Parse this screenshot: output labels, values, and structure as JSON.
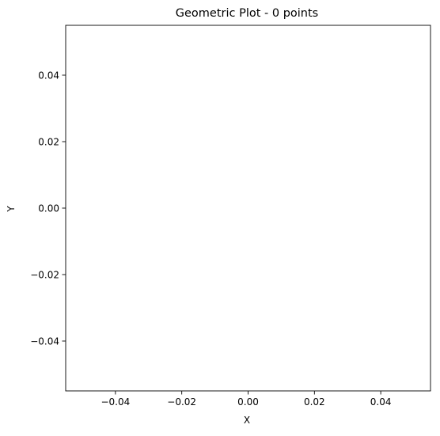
{
  "chart_data": {
    "type": "scatter",
    "title": "Geometric Plot - 0 points",
    "xlabel": "X",
    "ylabel": "Y",
    "x": [],
    "y": [],
    "xlim": [
      -0.055,
      0.055
    ],
    "ylim": [
      -0.055,
      0.055
    ],
    "xticks": [
      -0.04,
      -0.02,
      0.0,
      0.02,
      0.04
    ],
    "yticks": [
      -0.04,
      -0.02,
      0.0,
      0.02,
      0.04
    ],
    "xtick_labels": [
      "−0.04",
      "−0.02",
      "0.00",
      "0.02",
      "0.04"
    ],
    "ytick_labels": [
      "−0.04",
      "−0.02",
      "0.00",
      "0.02",
      "0.04"
    ],
    "grid": false,
    "legend": "none"
  }
}
